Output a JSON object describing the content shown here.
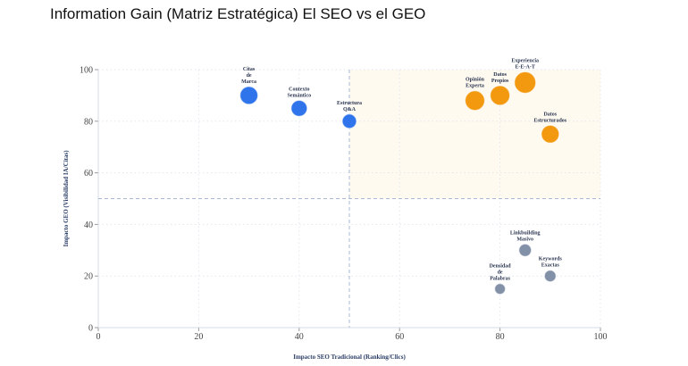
{
  "chart_data": {
    "type": "scatter",
    "title": "Information Gain (Matriz Estratégica) El SEO vs el GEO",
    "xlabel": "Impacto SEO Tradicional (Ranking/Clics)",
    "ylabel": "Impacto GEO (Visibilidad IA/Citas)",
    "xlim": [
      0,
      100
    ],
    "ylim": [
      0,
      100
    ],
    "xticks": [
      "0",
      "20",
      "40",
      "60",
      "80",
      "100"
    ],
    "yticks": [
      "0",
      "20",
      "40",
      "60",
      "80",
      "100"
    ],
    "grid": true,
    "reference_lines": {
      "x": 50,
      "y": 50
    },
    "highlight_region": {
      "x": [
        50,
        100
      ],
      "y": [
        50,
        100
      ],
      "color": "#fffaf0"
    },
    "colors": {
      "blue": "#2f74ea",
      "orange": "#f3990f",
      "gray": "#8391a8"
    },
    "points": [
      {
        "label": [
          "Citas",
          "de",
          "Marca"
        ],
        "x": 30,
        "y": 90,
        "size": 10,
        "color": "blue"
      },
      {
        "label": [
          "Contexto",
          "Semántico"
        ],
        "x": 40,
        "y": 85,
        "size": 9,
        "color": "blue"
      },
      {
        "label": [
          "Estructura",
          "Q&A"
        ],
        "x": 50,
        "y": 80,
        "size": 8,
        "color": "blue"
      },
      {
        "label": [
          "Opinión",
          "Experta"
        ],
        "x": 75,
        "y": 88,
        "size": 11,
        "color": "orange"
      },
      {
        "label": [
          "Datos",
          "Propios"
        ],
        "x": 80,
        "y": 90,
        "size": 11,
        "color": "orange"
      },
      {
        "label": [
          "Experiencia",
          "E-E-A-T"
        ],
        "x": 85,
        "y": 95,
        "size": 12,
        "color": "orange"
      },
      {
        "label": [
          "Datos",
          "Estructurados"
        ],
        "x": 90,
        "y": 75,
        "size": 10,
        "color": "orange"
      },
      {
        "label": [
          "Linkbuilding",
          "Masivo"
        ],
        "x": 85,
        "y": 30,
        "size": 7,
        "color": "gray"
      },
      {
        "label": [
          "Keywords",
          "Exactas"
        ],
        "x": 90,
        "y": 20,
        "size": 6.5,
        "color": "gray"
      },
      {
        "label": [
          "Densidad",
          "de",
          "Palabras"
        ],
        "x": 80,
        "y": 15,
        "size": 6,
        "color": "gray"
      }
    ]
  }
}
